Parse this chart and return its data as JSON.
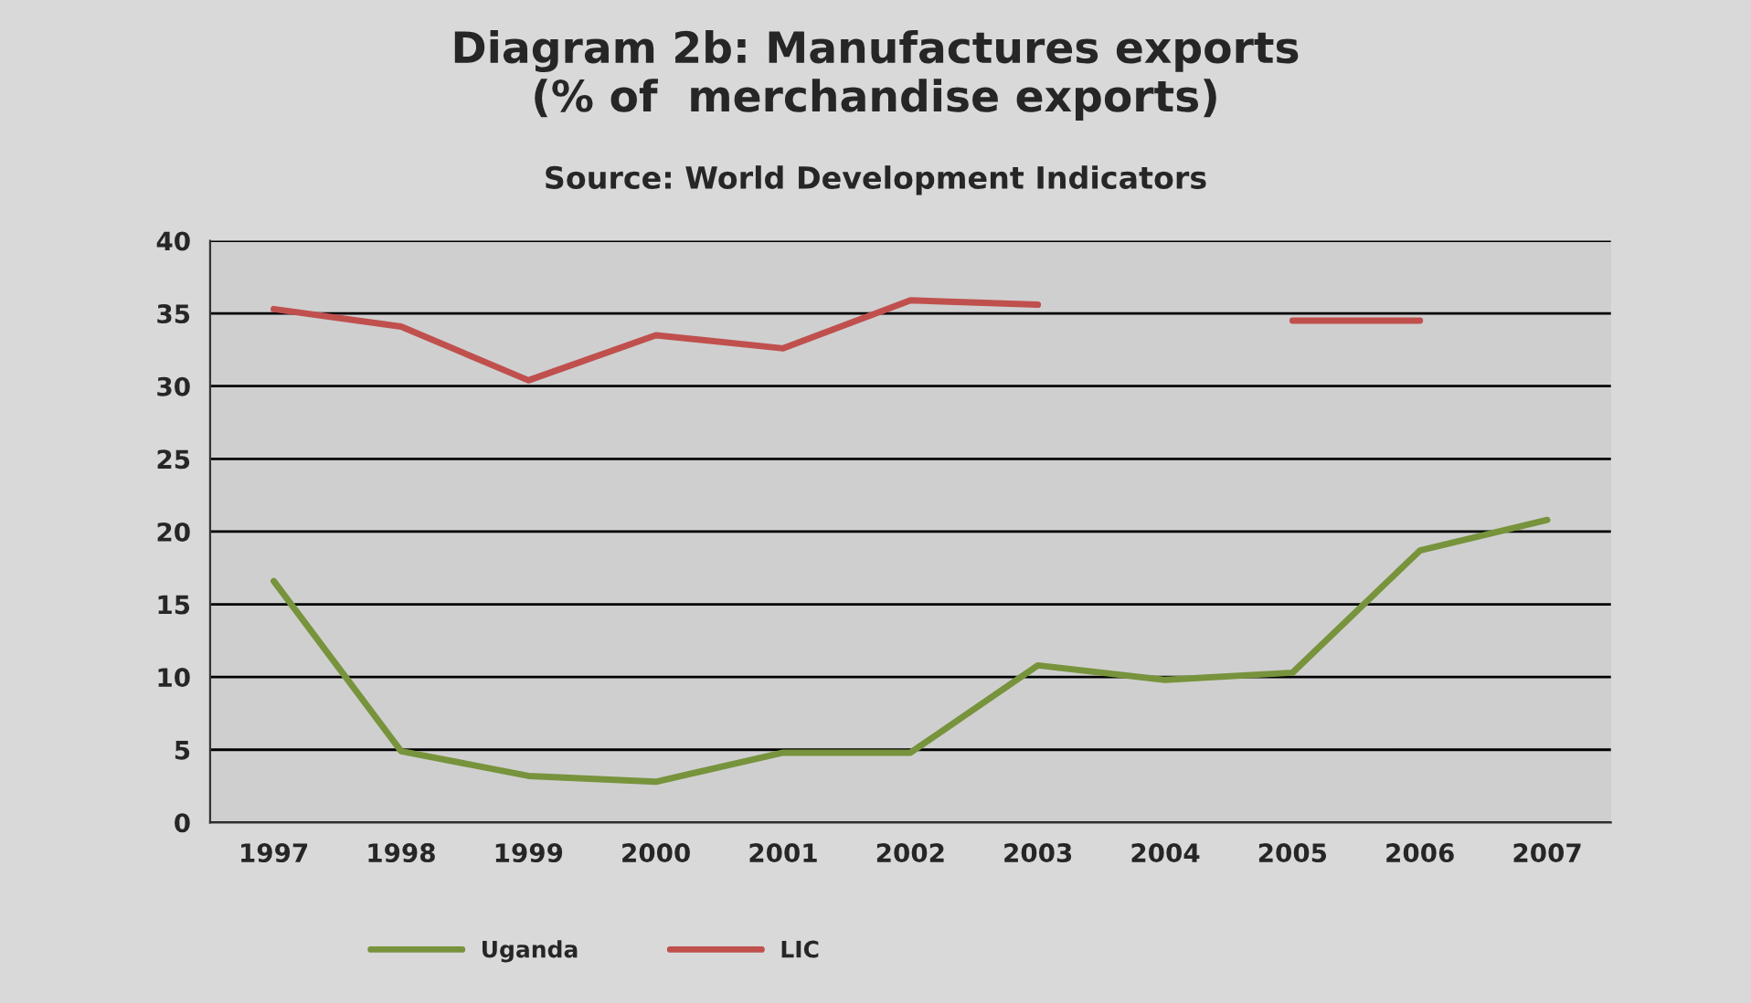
{
  "chart_data": {
    "type": "line",
    "title": "Diagram 2b: Manufactures exports\n(% of  merchandise exports)",
    "subtitle": "Source: World Development Indicators",
    "categories": [
      "1997",
      "1998",
      "1999",
      "2000",
      "2001",
      "2002",
      "2003",
      "2004",
      "2005",
      "2006",
      "2007"
    ],
    "series": [
      {
        "name": "Uganda",
        "color": "#77933c",
        "values": [
          16.6,
          4.9,
          3.2,
          2.8,
          4.8,
          4.8,
          10.8,
          9.8,
          10.3,
          18.7,
          20.8
        ]
      },
      {
        "name": "LIC",
        "color": "#c0504d",
        "values": [
          35.3,
          34.1,
          30.4,
          33.5,
          32.6,
          35.9,
          35.6,
          null,
          34.5,
          34.5,
          null
        ]
      }
    ],
    "ylim": [
      0,
      40
    ],
    "yticks": [
      0,
      5,
      10,
      15,
      20,
      25,
      30,
      35,
      40
    ],
    "grid": "y",
    "legend": "bottom",
    "marker": "none",
    "line_style": "solid"
  }
}
